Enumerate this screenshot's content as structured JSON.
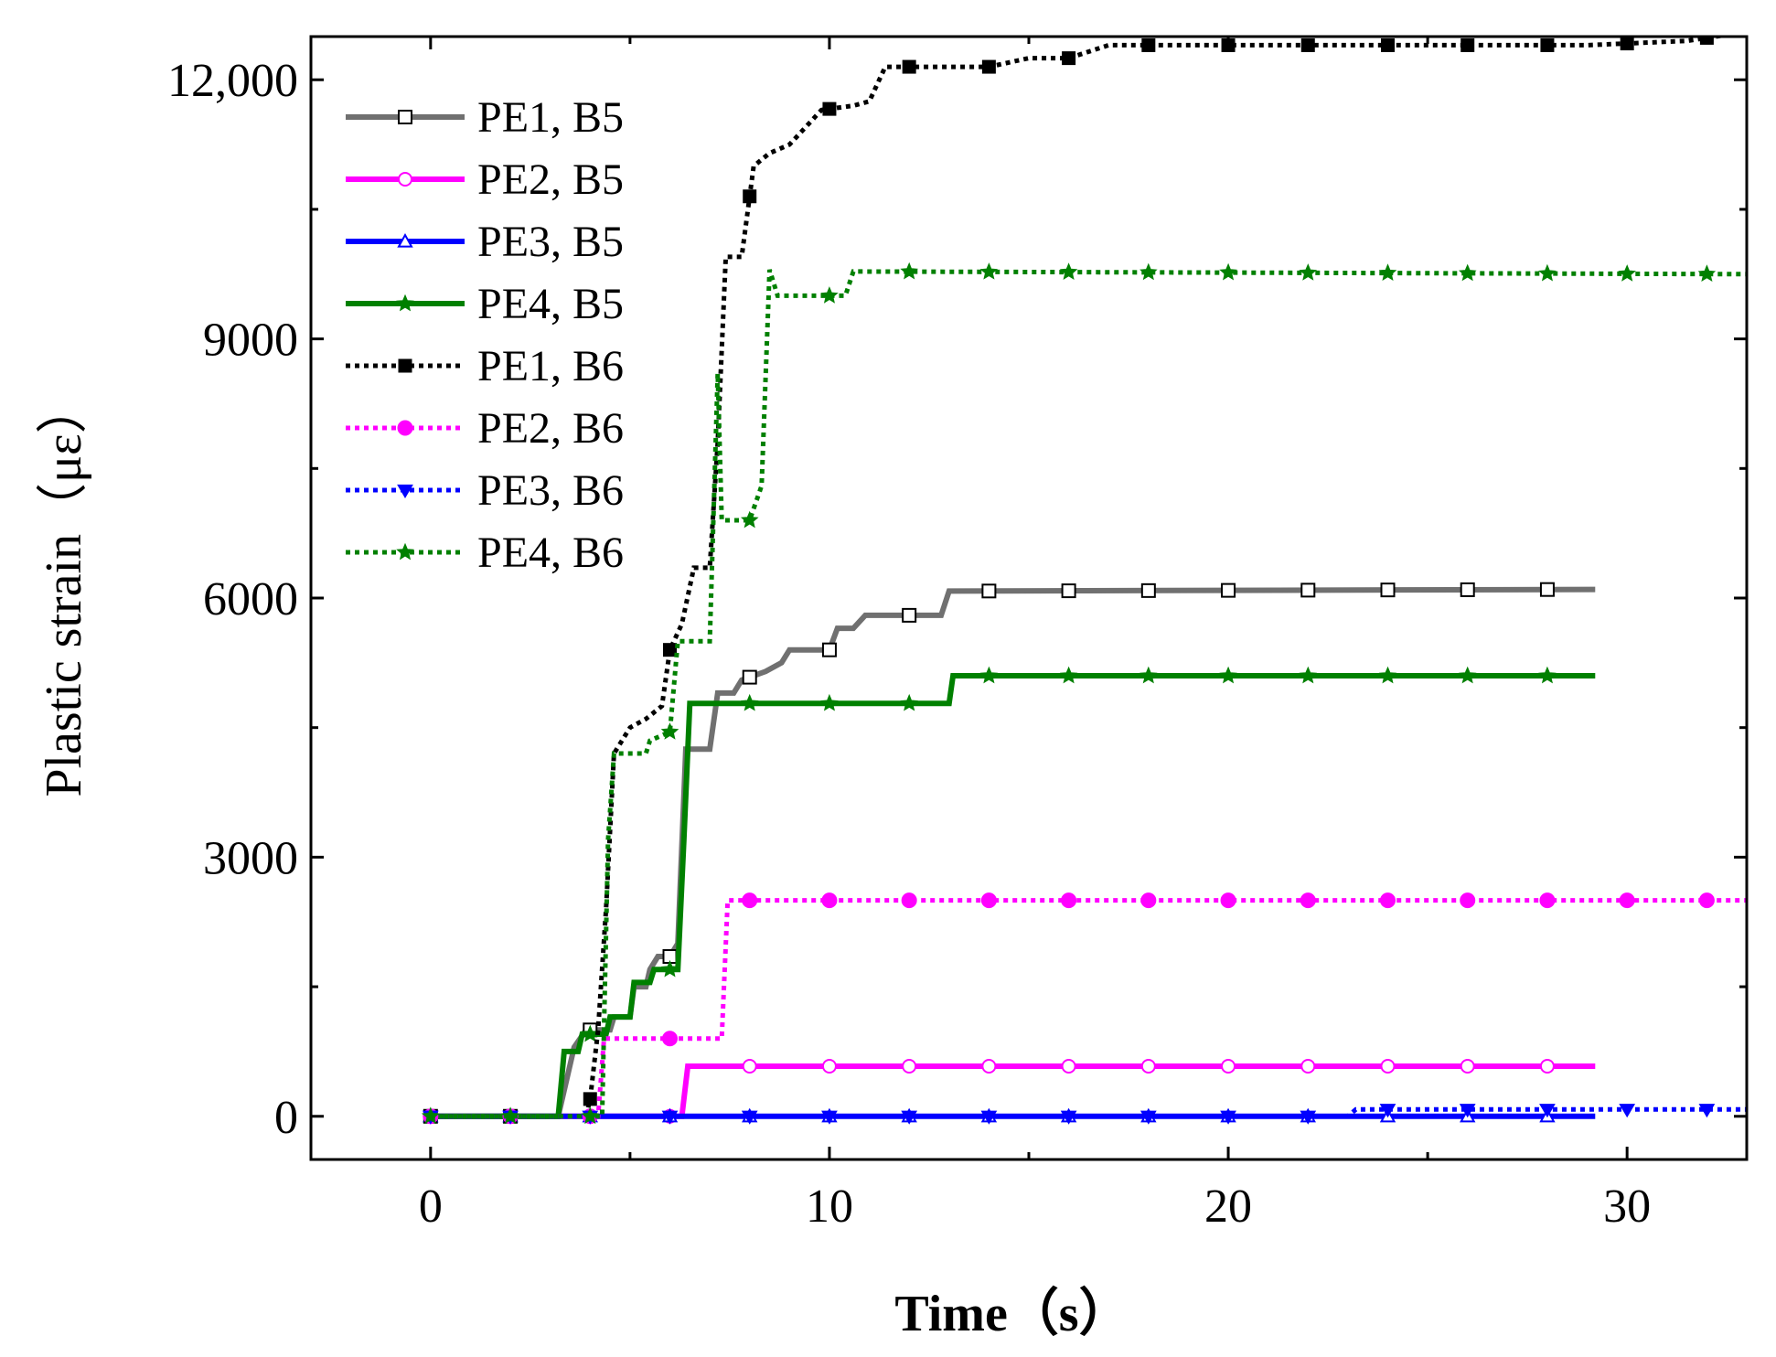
{
  "chart_data": {
    "type": "line",
    "title": "",
    "xlabel": "Time（s）",
    "ylabel": "Plastic strain（με）",
    "xlim": [
      -3,
      33
    ],
    "ylim": [
      -500,
      12500
    ],
    "xticks": [
      0,
      10,
      20,
      30
    ],
    "xtick_labels": [
      "0",
      "10",
      "20",
      "30"
    ],
    "yticks": [
      0,
      3000,
      6000,
      9000,
      12000
    ],
    "ytick_labels": [
      "0",
      "3000",
      "6000",
      "9000",
      "12,000"
    ],
    "grid": false,
    "legend_position": "top-left",
    "series": [
      {
        "name": "PE1, B5",
        "color": "#707070",
        "style": "solid",
        "marker": "square-open",
        "points": [
          [
            0,
            0
          ],
          [
            3.2,
            0
          ],
          [
            3.4,
            400
          ],
          [
            3.6,
            800
          ],
          [
            3.9,
            1000
          ],
          [
            4.5,
            1000
          ],
          [
            4.6,
            1150
          ],
          [
            5.0,
            1150
          ],
          [
            5.1,
            1500
          ],
          [
            5.4,
            1500
          ],
          [
            5.5,
            1700
          ],
          [
            5.7,
            1850
          ],
          [
            6.0,
            1850
          ],
          [
            6.2,
            2000
          ],
          [
            6.4,
            4250
          ],
          [
            7.0,
            4250
          ],
          [
            7.2,
            4900
          ],
          [
            7.6,
            4900
          ],
          [
            7.8,
            5050
          ],
          [
            8.4,
            5150
          ],
          [
            8.8,
            5250
          ],
          [
            9.0,
            5400
          ],
          [
            10.0,
            5400
          ],
          [
            10.2,
            5650
          ],
          [
            10.6,
            5650
          ],
          [
            10.9,
            5800
          ],
          [
            12.8,
            5800
          ],
          [
            13.0,
            6080
          ],
          [
            29.2,
            6100
          ]
        ],
        "markers_x": [
          0,
          2,
          4,
          6,
          8,
          10,
          12,
          14,
          16,
          18,
          20,
          22,
          24,
          26,
          28
        ]
      },
      {
        "name": "PE2, B5",
        "color": "#ff00ff",
        "style": "solid",
        "marker": "circle-open",
        "points": [
          [
            0,
            0
          ],
          [
            6.3,
            0
          ],
          [
            6.45,
            580
          ],
          [
            29.2,
            580
          ]
        ],
        "markers_x": [
          0,
          2,
          4,
          6,
          8,
          10,
          12,
          14,
          16,
          18,
          20,
          22,
          24,
          26,
          28
        ]
      },
      {
        "name": "PE3, B5",
        "color": "#0000ff",
        "style": "solid",
        "marker": "triangle-up-open",
        "points": [
          [
            0,
            0
          ],
          [
            29.2,
            0
          ]
        ],
        "markers_x": [
          0,
          2,
          4,
          6,
          8,
          10,
          12,
          14,
          16,
          18,
          20,
          22,
          24,
          26,
          28
        ]
      },
      {
        "name": "PE4, B5",
        "color": "#008000",
        "style": "solid",
        "marker": "star",
        "points": [
          [
            0,
            0
          ],
          [
            3.2,
            0
          ],
          [
            3.35,
            750
          ],
          [
            3.7,
            750
          ],
          [
            3.8,
            950
          ],
          [
            4.4,
            950
          ],
          [
            4.5,
            1150
          ],
          [
            5.0,
            1150
          ],
          [
            5.1,
            1550
          ],
          [
            5.5,
            1550
          ],
          [
            5.6,
            1700
          ],
          [
            6.2,
            1700
          ],
          [
            6.35,
            3200
          ],
          [
            6.5,
            4780
          ],
          [
            13.0,
            4780
          ],
          [
            13.1,
            5100
          ],
          [
            29.2,
            5100
          ]
        ],
        "markers_x": [
          0,
          2,
          4,
          6,
          8,
          10,
          12,
          14,
          16,
          18,
          20,
          22,
          24,
          26,
          28
        ]
      },
      {
        "name": "PE1, B6",
        "color": "#000000",
        "style": "dotted",
        "marker": "square-filled",
        "points": [
          [
            0,
            0
          ],
          [
            3.9,
            0
          ],
          [
            4.0,
            200
          ],
          [
            4.2,
            1000
          ],
          [
            4.4,
            2400
          ],
          [
            4.6,
            4200
          ],
          [
            5.0,
            4500
          ],
          [
            5.4,
            4600
          ],
          [
            5.8,
            4750
          ],
          [
            6.0,
            5400
          ],
          [
            6.3,
            5700
          ],
          [
            6.6,
            6350
          ],
          [
            7.0,
            6350
          ],
          [
            7.2,
            7800
          ],
          [
            7.4,
            9950
          ],
          [
            7.8,
            9950
          ],
          [
            8.1,
            11000
          ],
          [
            8.5,
            11150
          ],
          [
            9.0,
            11250
          ],
          [
            9.4,
            11450
          ],
          [
            9.8,
            11650
          ],
          [
            10.6,
            11700
          ],
          [
            11.0,
            11750
          ],
          [
            11.4,
            12150
          ],
          [
            13.5,
            12150
          ],
          [
            14.0,
            12150
          ],
          [
            15.0,
            12250
          ],
          [
            16.0,
            12250
          ],
          [
            17.0,
            12400
          ],
          [
            24.0,
            12400
          ],
          [
            29.0,
            12400
          ],
          [
            31.5,
            12450
          ],
          [
            32.5,
            12520
          ]
        ],
        "markers_x": [
          0,
          2,
          4,
          6,
          8,
          10,
          12,
          14,
          16,
          18,
          20,
          22,
          24,
          26,
          28,
          30,
          32
        ]
      },
      {
        "name": "PE2, B6",
        "color": "#ff00ff",
        "style": "dotted",
        "marker": "circle-filled",
        "points": [
          [
            0,
            0
          ],
          [
            4.2,
            0
          ],
          [
            4.35,
            900
          ],
          [
            7.3,
            900
          ],
          [
            7.45,
            2500
          ],
          [
            33,
            2500
          ]
        ],
        "markers_x": [
          0,
          2,
          4,
          6,
          8,
          10,
          12,
          14,
          16,
          18,
          20,
          22,
          24,
          26,
          28,
          30,
          32
        ]
      },
      {
        "name": "PE3, B6",
        "color": "#0000ff",
        "style": "dotted",
        "marker": "triangle-down-filled",
        "points": [
          [
            0,
            0
          ],
          [
            23,
            0
          ],
          [
            23.2,
            80
          ],
          [
            33,
            80
          ]
        ],
        "markers_x": [
          0,
          2,
          4,
          6,
          8,
          10,
          12,
          14,
          16,
          18,
          20,
          22,
          24,
          26,
          28,
          30,
          32
        ]
      },
      {
        "name": "PE4, B6",
        "color": "#008000",
        "style": "dotted",
        "marker": "star",
        "points": [
          [
            0,
            0
          ],
          [
            4.3,
            0
          ],
          [
            4.45,
            3200
          ],
          [
            4.6,
            4200
          ],
          [
            5.4,
            4200
          ],
          [
            5.5,
            4350
          ],
          [
            6.0,
            4450
          ],
          [
            6.2,
            5500
          ],
          [
            7.0,
            5500
          ],
          [
            7.2,
            8600
          ],
          [
            7.3,
            6900
          ],
          [
            8.0,
            6900
          ],
          [
            8.3,
            7300
          ],
          [
            8.5,
            9800
          ],
          [
            8.7,
            9500
          ],
          [
            10.4,
            9500
          ],
          [
            10.6,
            9780
          ],
          [
            33,
            9750
          ]
        ],
        "markers_x": [
          0,
          2,
          4,
          6,
          8,
          10,
          12,
          14,
          16,
          18,
          20,
          22,
          24,
          26,
          28,
          30,
          32
        ]
      }
    ]
  }
}
